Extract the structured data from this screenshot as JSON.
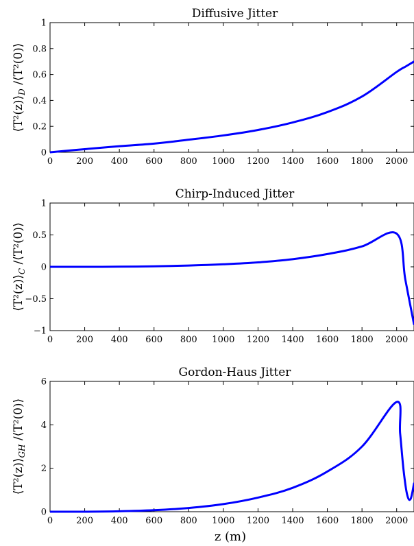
{
  "figure": {
    "xlabel": "z (m)"
  },
  "chart_data": [
    {
      "type": "line",
      "title": "Diffusive Jitter",
      "ylabel": "⟨T²(z)⟩_D /⟨T²(0)⟩",
      "xlim": [
        0,
        2100
      ],
      "ylim": [
        0,
        1
      ],
      "xticks": [
        0,
        200,
        400,
        600,
        800,
        1000,
        1200,
        1400,
        1600,
        1800,
        2000
      ],
      "xtick_labels": [
        "0",
        "200",
        "400",
        "600",
        "800",
        "1000",
        "1200",
        "1400",
        "1600",
        "1800",
        "2000"
      ],
      "yticks": [
        0,
        0.2,
        0.4,
        0.6,
        0.8,
        1
      ],
      "ytick_labels": [
        "0",
        "0.2",
        "0.4",
        "0.6",
        "0.8",
        "1"
      ],
      "grid": false,
      "color": "#0000ff",
      "series": [
        {
          "x": [
            0,
            200,
            400,
            600,
            800,
            1000,
            1200,
            1400,
            1600,
            1800,
            2000,
            2050,
            2100
          ],
          "y": [
            0,
            0.024,
            0.047,
            0.067,
            0.097,
            0.13,
            0.172,
            0.23,
            0.31,
            0.43,
            0.62,
            0.66,
            0.7
          ]
        }
      ]
    },
    {
      "type": "line",
      "title": "Chirp-Induced Jitter",
      "ylabel": "⟨T²(z)⟩_C /⟨T²(0)⟩",
      "xlim": [
        0,
        2100
      ],
      "ylim": [
        -1,
        1
      ],
      "xticks": [
        0,
        200,
        400,
        600,
        800,
        1000,
        1200,
        1400,
        1600,
        1800,
        2000
      ],
      "xtick_labels": [
        "0",
        "200",
        "400",
        "600",
        "800",
        "1000",
        "1200",
        "1400",
        "1600",
        "1800",
        "2000"
      ],
      "yticks": [
        -1,
        -0.5,
        0,
        0.5,
        1
      ],
      "ytick_labels": [
        "−1",
        "−0.5",
        "0",
        "0.5",
        "1"
      ],
      "grid": false,
      "color": "#0000ff",
      "series": [
        {
          "x": [
            0,
            200,
            400,
            600,
            800,
            1000,
            1200,
            1400,
            1600,
            1800,
            2000,
            2050,
            2100
          ],
          "y": [
            0,
            0,
            0.002,
            0.008,
            0.02,
            0.04,
            0.07,
            0.12,
            0.2,
            0.32,
            0.52,
            -0.2,
            -0.9
          ]
        }
      ]
    },
    {
      "type": "line",
      "title": "Gordon-Haus Jitter",
      "ylabel": "⟨T²(z)⟩_GH /⟨T²(0)⟩",
      "xlim": [
        0,
        2100
      ],
      "ylim": [
        0,
        6
      ],
      "xticks": [
        0,
        200,
        400,
        600,
        800,
        1000,
        1200,
        1400,
        1600,
        1800,
        2000
      ],
      "xtick_labels": [
        "0",
        "200",
        "400",
        "600",
        "800",
        "1000",
        "1200",
        "1400",
        "1600",
        "1800",
        "2000"
      ],
      "yticks": [
        0,
        2,
        4,
        6
      ],
      "ytick_labels": [
        "0",
        "2",
        "4",
        "6"
      ],
      "grid": false,
      "color": "#0000ff",
      "series": [
        {
          "x": [
            0,
            200,
            400,
            600,
            800,
            1000,
            1200,
            1400,
            1600,
            1800,
            2000,
            2020,
            2040,
            2060,
            2080,
            2100
          ],
          "y": [
            0,
            0,
            0.02,
            0.07,
            0.17,
            0.35,
            0.65,
            1.1,
            1.85,
            3.0,
            5.05,
            3.6,
            1.9,
            0.8,
            0.58,
            1.3
          ]
        }
      ]
    }
  ]
}
